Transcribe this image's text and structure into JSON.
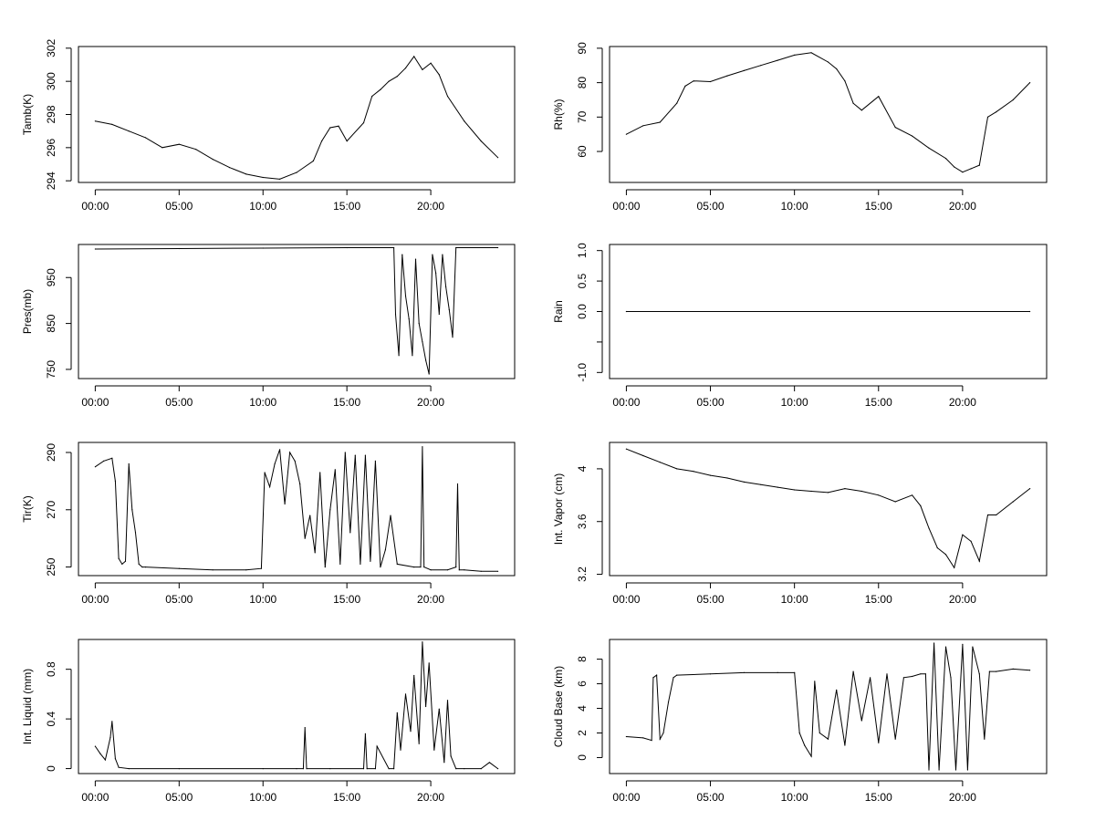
{
  "chart_data": [
    {
      "type": "line",
      "ylabel": "Tamb(K)",
      "x_ticks": [
        "00:00",
        "05:00",
        "10:00",
        "15:00",
        "20:00"
      ],
      "x_range_hours": [
        -1,
        25
      ],
      "ylim": [
        293.9,
        302.1
      ],
      "y_ticks": [
        294,
        296,
        298,
        300,
        302
      ],
      "x": [
        0,
        1,
        2,
        3,
        4,
        5,
        6,
        7,
        8,
        9,
        10,
        11,
        12,
        13,
        13.5,
        14,
        14.5,
        15,
        16,
        16.5,
        17,
        17.5,
        18,
        18.5,
        19,
        19.5,
        20,
        20.5,
        21,
        22,
        23,
        24
      ],
      "y": [
        297.6,
        297.4,
        297.0,
        296.6,
        296.0,
        296.2,
        295.9,
        295.3,
        294.8,
        294.4,
        294.2,
        294.1,
        294.5,
        295.2,
        296.4,
        297.2,
        297.3,
        296.4,
        297.5,
        299.1,
        299.5,
        300.0,
        300.3,
        300.8,
        301.5,
        300.7,
        301.1,
        300.4,
        299.1,
        297.6,
        296.4,
        295.4
      ]
    },
    {
      "type": "line",
      "ylabel": "Rh(%)",
      "x_ticks": [
        "00:00",
        "05:00",
        "10:00",
        "15:00",
        "20:00"
      ],
      "x_range_hours": [
        -1,
        25
      ],
      "ylim": [
        51,
        90.5
      ],
      "y_ticks": [
        60,
        70,
        80,
        90
      ],
      "x": [
        0,
        1,
        2,
        3,
        3.5,
        4,
        5,
        6,
        7,
        8,
        9,
        10,
        11,
        12,
        12.5,
        13,
        13.5,
        14,
        15,
        16,
        17,
        18,
        19,
        19.5,
        20,
        20.5,
        21,
        21.5,
        22,
        23,
        24
      ],
      "y": [
        65,
        67.5,
        68.5,
        74,
        79,
        80.5,
        80.3,
        82,
        83.5,
        85,
        86.5,
        88,
        88.7,
        86,
        84,
        80.5,
        74,
        72,
        76,
        67,
        64.5,
        61,
        58,
        55.5,
        54,
        55,
        56,
        70,
        71.5,
        75,
        80
      ]
    },
    {
      "type": "line",
      "ylabel": "Pres(mb)",
      "x_ticks": [
        "00:00",
        "05:00",
        "10:00",
        "15:00",
        "20:00"
      ],
      "x_range_hours": [
        -1,
        25
      ],
      "ylim": [
        730,
        1022
      ],
      "y_ticks": [
        750,
        850,
        950
      ],
      "x": [
        0,
        5,
        10,
        15,
        17.8,
        17.9,
        18.1,
        18.3,
        18.5,
        18.7,
        18.9,
        19.1,
        19.3,
        19.5,
        19.7,
        19.9,
        20.1,
        20.3,
        20.5,
        20.7,
        20.9,
        21.1,
        21.3,
        21.5,
        24
      ],
      "y": [
        1012,
        1013,
        1014,
        1015,
        1015,
        870,
        780,
        1000,
        910,
        860,
        780,
        990,
        850,
        810,
        770,
        740,
        1000,
        960,
        870,
        1000,
        930,
        880,
        820,
        1015,
        1015
      ]
    },
    {
      "type": "line",
      "ylabel": "Rain",
      "x_ticks": [
        "00:00",
        "05:00",
        "10:00",
        "15:00",
        "20:00"
      ],
      "x_range_hours": [
        -1,
        25
      ],
      "ylim": [
        -1.1,
        1.1
      ],
      "y_ticks": [
        -1.0,
        -0.5,
        0.0,
        0.5,
        1.0
      ],
      "y_tick_labels": [
        "-1.0",
        "",
        "0.0",
        "0.5",
        "1.0"
      ],
      "x": [
        0,
        24
      ],
      "y": [
        0,
        0
      ]
    },
    {
      "type": "line",
      "ylabel": "Tir(K)",
      "x_ticks": [
        "00:00",
        "05:00",
        "10:00",
        "15:00",
        "20:00"
      ],
      "x_range_hours": [
        -1,
        25
      ],
      "ylim": [
        247,
        293.5
      ],
      "y_ticks": [
        250,
        270,
        290
      ],
      "x": [
        0,
        0.5,
        1,
        1.2,
        1.4,
        1.6,
        1.8,
        2.0,
        2.2,
        2.4,
        2.6,
        2.8,
        3,
        5,
        7,
        9,
        9.9,
        10.1,
        10.4,
        10.7,
        11,
        11.3,
        11.6,
        11.9,
        12.2,
        12.5,
        12.8,
        13.1,
        13.4,
        13.7,
        14,
        14.3,
        14.6,
        14.9,
        15.2,
        15.5,
        15.8,
        16.1,
        16.4,
        16.7,
        17,
        17.3,
        17.6,
        18,
        19,
        19.4,
        19.5,
        19.6,
        20,
        21,
        21.5,
        21.6,
        21.7,
        22,
        23,
        24
      ],
      "y": [
        285,
        287,
        288,
        280,
        253,
        251,
        252,
        286,
        270,
        262,
        251,
        250,
        250,
        249.5,
        249,
        249,
        249.5,
        283,
        278,
        286,
        291,
        272,
        290,
        287,
        279,
        260,
        268,
        255,
        283,
        250,
        270,
        284,
        251,
        290,
        262,
        289,
        251,
        289,
        252,
        287,
        250,
        256,
        268,
        251,
        250,
        250,
        292,
        250,
        249,
        249,
        250,
        279,
        249,
        249,
        248.5,
        248.5
      ]
    },
    {
      "type": "line",
      "ylabel": "Int. Vapor (cm)",
      "x_ticks": [
        "00:00",
        "05:00",
        "10:00",
        "15:00",
        "20:00"
      ],
      "x_range_hours": [
        -1,
        25
      ],
      "ylim": [
        3.19,
        4.2
      ],
      "y_ticks": [
        3.2,
        3.6,
        4.0
      ],
      "x": [
        0,
        1,
        2,
        3,
        4,
        5,
        6,
        7,
        8,
        9,
        10,
        11,
        12,
        13,
        14,
        15,
        16,
        17,
        17.5,
        18,
        18.5,
        19,
        19.5,
        20,
        20.5,
        21,
        21.5,
        22,
        23,
        24
      ],
      "y": [
        4.15,
        4.1,
        4.05,
        4.0,
        3.98,
        3.95,
        3.93,
        3.9,
        3.88,
        3.86,
        3.84,
        3.83,
        3.82,
        3.85,
        3.83,
        3.8,
        3.75,
        3.8,
        3.72,
        3.55,
        3.4,
        3.35,
        3.25,
        3.5,
        3.45,
        3.3,
        3.65,
        3.65,
        3.75,
        3.85
      ]
    },
    {
      "type": "line",
      "ylabel": "Int. Liquid (mm)",
      "x_ticks": [
        "00:00",
        "05:00",
        "10:00",
        "15:00",
        "20:00"
      ],
      "x_range_hours": [
        -1,
        25
      ],
      "ylim": [
        -0.04,
        1.04
      ],
      "y_ticks": [
        0.0,
        0.4,
        0.8
      ],
      "x": [
        0,
        0.3,
        0.6,
        0.9,
        1.0,
        1.2,
        1.4,
        2,
        5,
        10,
        12,
        12.4,
        12.5,
        12.6,
        14,
        16,
        16.1,
        16.2,
        16.7,
        16.8,
        17.5,
        17.8,
        18.0,
        18.2,
        18.5,
        18.8,
        19.0,
        19.3,
        19.5,
        19.7,
        19.9,
        20.2,
        20.5,
        20.8,
        21.0,
        21.2,
        21.5,
        22,
        23,
        23.5,
        24
      ],
      "y": [
        0.18,
        0.12,
        0.07,
        0.25,
        0.38,
        0.08,
        0.01,
        0.0,
        0.0,
        0.0,
        0.0,
        0.0,
        0.33,
        0.0,
        0.0,
        0.0,
        0.28,
        0.0,
        0.0,
        0.18,
        0.0,
        0.0,
        0.45,
        0.15,
        0.6,
        0.3,
        0.75,
        0.2,
        1.02,
        0.5,
        0.85,
        0.15,
        0.48,
        0.05,
        0.55,
        0.1,
        0.0,
        0.0,
        0.0,
        0.05,
        0.0
      ]
    },
    {
      "type": "line",
      "ylabel": "Cloud Base (km)",
      "x_ticks": [
        "00:00",
        "05:00",
        "10:00",
        "15:00",
        "20:00"
      ],
      "x_range_hours": [
        -1,
        25
      ],
      "ylim": [
        -1.3,
        9.6
      ],
      "y_ticks": [
        0,
        2,
        4,
        6,
        8
      ],
      "x": [
        0,
        1,
        1.5,
        1.6,
        1.8,
        2.0,
        2.2,
        2.5,
        2.8,
        3,
        5,
        7,
        9,
        10,
        10.3,
        10.6,
        11,
        11.2,
        11.5,
        12,
        12.5,
        13,
        13.5,
        14,
        14.5,
        15,
        15.5,
        16,
        16.5,
        17,
        17.5,
        17.8,
        18,
        18.3,
        18.6,
        19,
        19.3,
        19.6,
        20,
        20.3,
        20.6,
        21,
        21.3,
        21.6,
        22,
        23,
        24
      ],
      "y": [
        1.7,
        1.6,
        1.4,
        6.5,
        6.7,
        1.5,
        2.0,
        4.5,
        6.5,
        6.7,
        6.8,
        6.9,
        6.9,
        6.9,
        2,
        1,
        0.1,
        6.2,
        2,
        1.5,
        5.5,
        1.0,
        7.0,
        3.0,
        6.5,
        1.2,
        6.8,
        1.5,
        6.5,
        6.6,
        6.8,
        6.8,
        -1.0,
        9.3,
        -1.0,
        9.0,
        6.5,
        -1.0,
        9.2,
        -1.0,
        9.0,
        6.8,
        1.5,
        7.0,
        7.0,
        7.2,
        7.1
      ]
    }
  ]
}
